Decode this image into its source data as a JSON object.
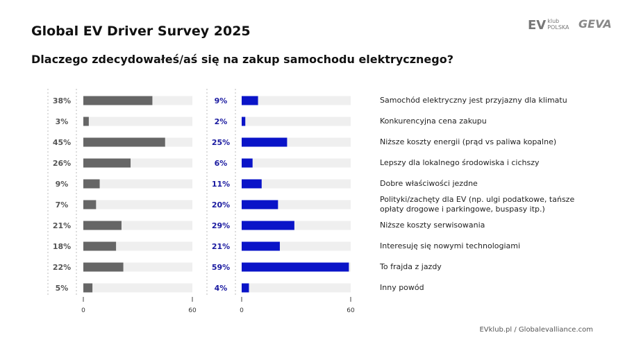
{
  "header": {
    "title": "Global EV Driver Survey 2025",
    "subtitle": "Dlaczego zdecydowałeś/aś się na zakup samochodu elektrycznego?",
    "logos": {
      "evklub": "EV klub POLSKA",
      "geva": "GEVA"
    }
  },
  "footer": {
    "text": "EVklub.pl  /  Globalevalliance.com"
  },
  "chart_data": [
    {
      "type": "bar",
      "orientation": "horizontal",
      "series": [
        {
          "values": [
            38,
            3,
            45,
            26,
            9,
            7,
            21,
            18,
            22,
            5
          ]
        }
      ],
      "xlim": [
        0,
        60
      ],
      "xticks": [
        "0",
        "60"
      ],
      "color": "#666666",
      "unit": "%"
    },
    {
      "type": "bar",
      "orientation": "horizontal",
      "series": [
        {
          "values": [
            9,
            2,
            25,
            6,
            11,
            20,
            29,
            21,
            59,
            4
          ]
        }
      ],
      "xlim": [
        0,
        60
      ],
      "xticks": [
        "0",
        "60"
      ],
      "color": "#0a14c8",
      "unit": "%"
    }
  ],
  "categories": [
    "Samochód elektryczny jest przyjazny dla klimatu",
    "Konkurencyjna cena zakupu",
    "Niższe koszty energii (prąd vs paliwa kopalne)",
    "Lepszy dla lokalnego środowiska i cichszy",
    "Dobre właściwości jezdne",
    "Polityki/zachęty dla EV (np. ulgi podatkowe, tańsze opłaty drogowe i parkingowe, buspasy itp.)",
    "Niższe koszty serwisowania",
    "Interesuję się nowymi technologiami",
    "To frajda z jazdy",
    "Inny powód"
  ]
}
